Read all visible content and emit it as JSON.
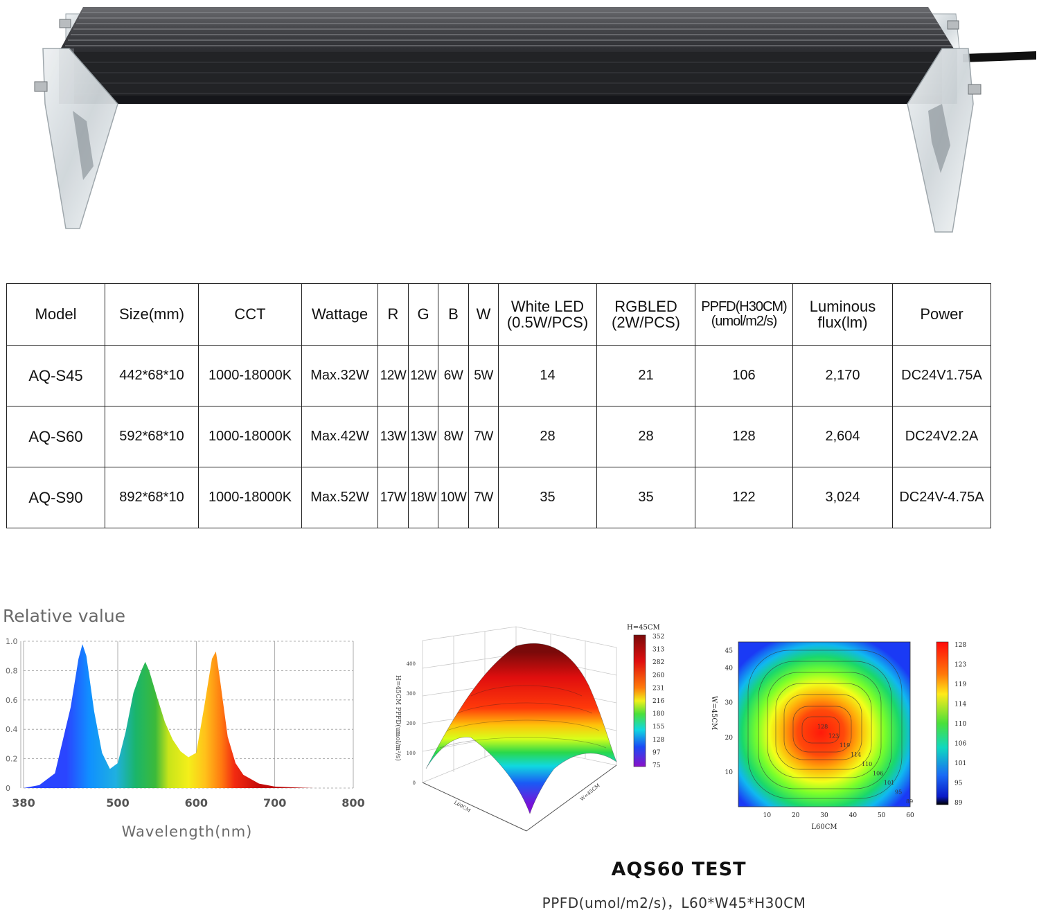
{
  "table": {
    "headers": [
      "Model",
      "Size(mm)",
      "CCT",
      "Wattage",
      "R",
      "G",
      "B",
      "W",
      [
        "White LED",
        "(0.5W/PCS)"
      ],
      [
        "RGBLED",
        "(2W/PCS)"
      ],
      [
        "PPFD(H30CM)",
        "(umol/m2/s)"
      ],
      [
        "Luminous",
        "flux(lm)"
      ],
      "Power"
    ],
    "rows": [
      [
        "AQ-S45",
        "442*68*10",
        "1000-18000K",
        "Max.32W",
        "12W",
        "12W",
        "6W",
        "5W",
        "14",
        "21",
        "106",
        "2,170",
        "DC24V1.75A"
      ],
      [
        "AQ-S60",
        "592*68*10",
        "1000-18000K",
        "Max.42W",
        "13W",
        "13W",
        "8W",
        "7W",
        "28",
        "28",
        "128",
        "2,604",
        "DC24V2.2A"
      ],
      [
        "AQ-S90",
        "892*68*10",
        "1000-18000K",
        "Max.52W",
        "17W",
        "18W",
        "10W",
        "7W",
        "35",
        "35",
        "122",
        "3,024",
        "DC24V-4.75A"
      ]
    ]
  },
  "chart_data": [
    {
      "type": "area",
      "title": "Relative value",
      "xlabel": "Wavelength(nm)",
      "ylabel": "",
      "xlim": [
        380,
        800
      ],
      "ylim": [
        0,
        1.0
      ],
      "x_ticks": [
        "380",
        "500",
        "600",
        "700",
        "800"
      ],
      "y_ticks": [
        "0",
        "0.2",
        "0.4",
        "0.6",
        "0.8",
        "1.0"
      ],
      "grid": true,
      "x": [
        380,
        400,
        420,
        440,
        450,
        455,
        460,
        470,
        480,
        490,
        500,
        510,
        520,
        530,
        535,
        540,
        550,
        560,
        570,
        580,
        590,
        600,
        610,
        620,
        625,
        630,
        640,
        650,
        660,
        680,
        700,
        720,
        750,
        800
      ],
      "y": [
        0,
        0.02,
        0.1,
        0.55,
        0.88,
        0.98,
        0.9,
        0.52,
        0.24,
        0.13,
        0.17,
        0.38,
        0.65,
        0.8,
        0.86,
        0.8,
        0.62,
        0.45,
        0.33,
        0.25,
        0.21,
        0.24,
        0.55,
        0.88,
        0.93,
        0.75,
        0.35,
        0.17,
        0.09,
        0.03,
        0.01,
        0.005,
        0,
        0
      ]
    },
    {
      "type": "heatmap",
      "subtype": "surface-3d",
      "title": "H=45CM",
      "ylabel": "H=45CM PPFD(umol/m²/s)",
      "xlabel": "L60CM",
      "zlabel": "W=45CM",
      "z_ticks": [
        "0",
        "100",
        "200",
        "300",
        "400"
      ],
      "colorbar": [
        "352",
        "313",
        "282",
        "260",
        "231",
        "216",
        "180",
        "155",
        "128",
        "97",
        "75"
      ]
    },
    {
      "type": "heatmap",
      "subtype": "contour",
      "xlabel": "L60CM",
      "ylabel": "W=45CM",
      "x_ticks": [
        "10",
        "20",
        "30",
        "40",
        "50",
        "60"
      ],
      "y_ticks": [
        "10",
        "20",
        "30",
        "40",
        "45"
      ],
      "colorbar": [
        "128",
        "123",
        "119",
        "114",
        "110",
        "106",
        "101",
        "95",
        "89"
      ],
      "contour_labels": [
        "128",
        "123",
        "119",
        "114",
        "110",
        "106",
        "101",
        "95",
        "89"
      ]
    }
  ],
  "caption": {
    "title": "AQS60 TEST",
    "subtitle": "PPFD(umol/m2/s)，L60*W45*H30CM"
  }
}
